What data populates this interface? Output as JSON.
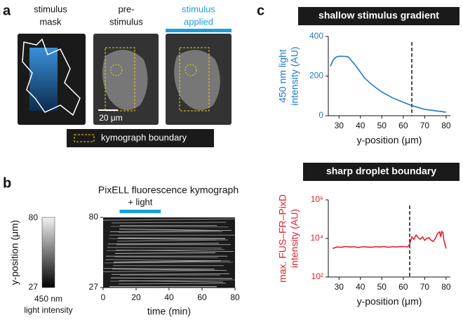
{
  "panel_labels": [
    "a",
    "b",
    "c"
  ],
  "panel_a": {
    "images": [
      {
        "title": [
          "stimulus",
          "mask"
        ]
      },
      {
        "title": [
          "pre-",
          "stimulus"
        ]
      },
      {
        "title": [
          "stimulus",
          "applied"
        ]
      }
    ],
    "scale_bar": "20 μm",
    "legend": "kymograph boundary"
  },
  "panel_b": {
    "title": "PixELL fluorescence kymograph",
    "colorbar": {
      "top": 80,
      "bottom": 27,
      "label": "y-position (μm)",
      "caption": [
        "450 nm",
        "light intensity"
      ]
    }
  },
  "chart_data": [
    {
      "type": "kymograph",
      "annotation": "+ light",
      "light_span": [
        10,
        35
      ],
      "xlabel": "time (min)",
      "xlim": [
        0,
        80
      ],
      "xticks": [
        0,
        20,
        40,
        60,
        80
      ],
      "ylim": [
        27,
        80
      ],
      "yticks": [
        27,
        80
      ]
    },
    {
      "type": "line",
      "title": "shallow stimulus gradient",
      "ylabel": [
        "450 nm light",
        "intensity (AU)"
      ],
      "xlabel": "y-position (μm)",
      "color": "#1f78c8",
      "boundary": 64,
      "x": [
        26,
        27,
        28,
        29,
        30,
        32,
        34,
        35,
        36,
        38,
        40,
        42,
        45,
        48,
        50,
        55,
        60,
        63,
        65,
        70,
        75,
        80
      ],
      "values": [
        250,
        275,
        290,
        298,
        300,
        300,
        298,
        290,
        275,
        250,
        220,
        190,
        160,
        135,
        120,
        90,
        68,
        55,
        48,
        32,
        25,
        18
      ],
      "xlim": [
        25,
        82
      ],
      "xticks": [
        30,
        40,
        50,
        60,
        70,
        80
      ],
      "ylim": [
        0,
        400
      ],
      "yticks": [
        0,
        200,
        400
      ],
      "log": false
    },
    {
      "type": "line",
      "title": "sharp droplet boundary",
      "ylabel": [
        "max. FUS–FR–PixD",
        "intensity (AU)"
      ],
      "xlabel": "y-position (μm)",
      "color": "#e0202a",
      "boundary": 63,
      "x": [
        27,
        29,
        31,
        33,
        35,
        37,
        39,
        41,
        43,
        45,
        47,
        49,
        51,
        53,
        55,
        57,
        59,
        61,
        62,
        63,
        63.5,
        64,
        65,
        66,
        67,
        68,
        69,
        70,
        71,
        72,
        73,
        74,
        75,
        76,
        77,
        77.5,
        78,
        78.5,
        79,
        79.5,
        80
      ],
      "values": [
        3000,
        3600,
        3500,
        3800,
        3600,
        3700,
        3400,
        3700,
        3600,
        3500,
        3700,
        3600,
        3800,
        3500,
        3700,
        3600,
        3800,
        3700,
        3600,
        5000,
        8000,
        12000,
        9000,
        15000,
        11000,
        9000,
        12000,
        8000,
        10000,
        11000,
        8000,
        7000,
        10000,
        18000,
        22000,
        12000,
        23000,
        20000,
        8000,
        5000,
        3000
      ],
      "xlim": [
        25,
        82
      ],
      "xticks": [
        30,
        40,
        50,
        60,
        70,
        80
      ],
      "ylim": [
        100,
        1000000
      ],
      "yticks": [
        {
          "value": 100,
          "label": "10²"
        },
        {
          "value": 10000,
          "label": "10⁴"
        },
        {
          "value": 1000000,
          "label": "10⁶"
        }
      ],
      "log": true
    }
  ]
}
